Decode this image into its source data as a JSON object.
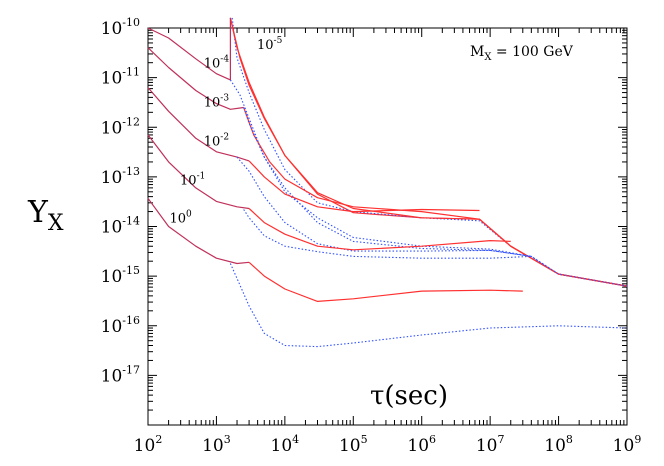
{
  "chart_data": {
    "type": "line",
    "xscale": "log",
    "yscale": "log",
    "xlim": [
      100,
      1000000000
    ],
    "ylim": [
      1e-18,
      1e-10
    ],
    "xlabel": "τ(sec)",
    "ylabel": {
      "main": "Y",
      "sub": "X"
    },
    "annotation": {
      "main": "M",
      "sub": "X",
      "rest": " = 100 GeV"
    },
    "x_ticks": [
      {
        "value": 100,
        "base": "10",
        "exp": "2"
      },
      {
        "value": 1000,
        "base": "10",
        "exp": "3"
      },
      {
        "value": 10000,
        "base": "10",
        "exp": "4"
      },
      {
        "value": 100000,
        "base": "10",
        "exp": "5"
      },
      {
        "value": 1000000,
        "base": "10",
        "exp": "6"
      },
      {
        "value": 10000000,
        "base": "10",
        "exp": "7"
      },
      {
        "value": 100000000,
        "base": "10",
        "exp": "8"
      },
      {
        "value": 1000000000,
        "base": "10",
        "exp": "9"
      }
    ],
    "y_ticks": [
      {
        "value": 1e-10,
        "base": "10",
        "exp": "-10"
      },
      {
        "value": 1e-11,
        "base": "10",
        "exp": "-11"
      },
      {
        "value": 1e-12,
        "base": "10",
        "exp": "-12"
      },
      {
        "value": 1e-13,
        "base": "10",
        "exp": "-13"
      },
      {
        "value": 1e-14,
        "base": "10",
        "exp": "-14"
      },
      {
        "value": 1e-15,
        "base": "10",
        "exp": "-15"
      },
      {
        "value": 1e-16,
        "base": "10",
        "exp": "-16"
      },
      {
        "value": 1e-17,
        "base": "10",
        "exp": "-17"
      }
    ],
    "curve_labels": [
      {
        "base": "10",
        "exp": "-5",
        "x": 6000,
        "y": 3.8e-11
      },
      {
        "base": "10",
        "exp": "-4",
        "x": 1000,
        "y": 1.6e-11
      },
      {
        "base": "10",
        "exp": "-3",
        "x": 1000,
        "y": 2.6e-12
      },
      {
        "base": "10",
        "exp": "-2",
        "x": 1000,
        "y": 4.3e-13
      },
      {
        "base": "10",
        "exp": "-1",
        "x": 450,
        "y": 7e-14
      },
      {
        "base": "10",
        "exp": "0",
        "x": 300,
        "y": 1.2e-14
      }
    ],
    "series": [
      {
        "name": "1e-5 solid",
        "color": "#ff3030",
        "style": "solid",
        "points": [
          [
            1600,
            1.6e-10
          ],
          [
            2000,
            4e-11
          ],
          [
            3000,
            8e-12
          ],
          [
            5000,
            1.6e-12
          ],
          [
            10000,
            2.7e-13
          ],
          [
            30000,
            4.5e-14
          ],
          [
            100000,
            1.9e-14
          ],
          [
            1000000,
            1.5e-14
          ],
          [
            7000000,
            1.4e-14
          ],
          [
            20000000,
            4e-15
          ],
          [
            100000000,
            1.1e-15
          ],
          [
            1000000000,
            6.3e-16
          ]
        ]
      },
      {
        "name": "1e-5 dotted",
        "color": "#3050ff",
        "style": "dotted",
        "points": [
          [
            1700,
            1.6e-10
          ],
          [
            2000,
            2.5e-11
          ],
          [
            3000,
            5e-12
          ],
          [
            5000,
            9e-13
          ],
          [
            10000,
            1.4e-13
          ],
          [
            30000,
            3e-14
          ],
          [
            100000,
            2e-14
          ],
          [
            1000000,
            1.5e-14
          ],
          [
            7000000,
            1.3e-14
          ],
          [
            20000000,
            4e-15
          ],
          [
            100000000,
            1.1e-15
          ],
          [
            1000000000,
            6.3e-16
          ]
        ]
      },
      {
        "name": "1e-4 solid",
        "color": "#ff3030",
        "style": "solid",
        "points": [
          [
            1600,
            1.6e-10
          ],
          [
            2200,
            2.5e-11
          ],
          [
            3000,
            7e-12
          ],
          [
            5000,
            1.5e-12
          ],
          [
            10000,
            2.7e-13
          ],
          [
            30000,
            4.8e-14
          ],
          [
            100000,
            2.3e-14
          ],
          [
            1000000,
            1.5e-14
          ],
          [
            7000000,
            1.4e-14
          ],
          [
            20000000,
            4e-15
          ],
          [
            100000000,
            1.1e-15
          ],
          [
            1000000000,
            6.3e-16
          ]
        ]
      },
      {
        "name": "1e-4 magenta",
        "color": "#c0305a",
        "style": "solid",
        "points": [
          [
            100,
            1e-10
          ],
          [
            200,
            6.3e-11
          ],
          [
            500,
            2.4e-11
          ],
          [
            1000,
            1.2e-11
          ],
          [
            1600,
            9e-12
          ],
          [
            1600,
            1.6e-10
          ]
        ]
      },
      {
        "name": "1e-4 dotted",
        "color": "#3050ff",
        "style": "dotted",
        "points": [
          [
            1600,
            9e-12
          ],
          [
            2200,
            4.5e-12
          ],
          [
            3000,
            1.5e-12
          ],
          [
            5000,
            2.5e-13
          ],
          [
            10000,
            5e-14
          ],
          [
            30000,
            1.5e-14
          ],
          [
            100000,
            6e-15
          ],
          [
            1000000,
            4e-15
          ],
          [
            10000000,
            3.5e-15
          ],
          [
            40000000,
            2.5e-15
          ],
          [
            100000000,
            1.1e-15
          ],
          [
            1000000000,
            6.3e-16
          ]
        ]
      },
      {
        "name": "1e-3 magenta",
        "color": "#c0305a",
        "style": "solid",
        "points": [
          [
            100,
            4e-11
          ],
          [
            200,
            1.6e-11
          ],
          [
            500,
            5.5e-12
          ],
          [
            1000,
            3e-12
          ],
          [
            1600,
            2.3e-12
          ],
          [
            2500,
            2.5e-12
          ]
        ]
      },
      {
        "name": "1e-3 red",
        "color": "#ff3030",
        "style": "solid",
        "points": [
          [
            2500,
            2.5e-12
          ],
          [
            3500,
            7e-13
          ],
          [
            6000,
            2e-13
          ],
          [
            10000,
            9e-14
          ],
          [
            30000,
            3.8e-14
          ],
          [
            100000,
            2.5e-14
          ],
          [
            1000000,
            2e-14
          ],
          [
            7000000,
            1.4e-14
          ],
          [
            20000000,
            4e-15
          ],
          [
            100000000,
            1.1e-15
          ],
          [
            1000000000,
            6.3e-16
          ]
        ]
      },
      {
        "name": "1e-3 dotted",
        "color": "#3050ff",
        "style": "dotted",
        "points": [
          [
            2500,
            2.5e-12
          ],
          [
            3000,
            1.2e-12
          ],
          [
            5000,
            2.5e-13
          ],
          [
            10000,
            6e-14
          ],
          [
            30000,
            1.2e-14
          ],
          [
            100000,
            5e-15
          ],
          [
            1000000,
            3.6e-15
          ],
          [
            10000000,
            3.3e-15
          ],
          [
            40000000,
            2.5e-15
          ],
          [
            100000000,
            1.1e-15
          ],
          [
            1000000000,
            6.3e-16
          ]
        ]
      },
      {
        "name": "1e-2 magenta",
        "color": "#c0305a",
        "style": "solid",
        "points": [
          [
            100,
            6.3e-12
          ],
          [
            200,
            2.1e-12
          ],
          [
            500,
            6e-13
          ],
          [
            1000,
            3.2e-13
          ],
          [
            2000,
            2.5e-13
          ],
          [
            3000,
            2.1e-13
          ]
        ]
      },
      {
        "name": "1e-2 red",
        "color": "#ff3030",
        "style": "solid",
        "points": [
          [
            3000,
            2.1e-13
          ],
          [
            5000,
            1e-13
          ],
          [
            10000,
            4.5e-14
          ],
          [
            30000,
            2.5e-14
          ],
          [
            100000,
            2e-14
          ],
          [
            1000000,
            2.2e-14
          ],
          [
            7000000,
            2.1e-14
          ]
        ]
      },
      {
        "name": "1e-2 dotted",
        "color": "#3050ff",
        "style": "dotted",
        "points": [
          [
            2000,
            2.5e-13
          ],
          [
            3000,
            1.3e-13
          ],
          [
            5000,
            4e-14
          ],
          [
            10000,
            1.2e-14
          ],
          [
            30000,
            4.5e-15
          ],
          [
            100000,
            3.2e-15
          ],
          [
            1000000,
            3.2e-15
          ],
          [
            10000000,
            3.3e-15
          ],
          [
            40000000,
            2.5e-15
          ]
        ]
      },
      {
        "name": "1e-1 magenta",
        "color": "#c0305a",
        "style": "solid",
        "points": [
          [
            100,
            7e-13
          ],
          [
            200,
            2e-13
          ],
          [
            500,
            6e-14
          ],
          [
            1000,
            3.2e-14
          ],
          [
            2000,
            2.5e-14
          ],
          [
            3000,
            2.3e-14
          ]
        ]
      },
      {
        "name": "1e-1 red",
        "color": "#ff3030",
        "style": "solid",
        "points": [
          [
            3000,
            2.3e-14
          ],
          [
            5000,
            1.2e-14
          ],
          [
            10000,
            7e-15
          ],
          [
            30000,
            4e-15
          ],
          [
            100000,
            3.4e-15
          ],
          [
            1000000,
            4e-15
          ],
          [
            10000000,
            5.2e-15
          ],
          [
            20000000,
            5e-15
          ]
        ]
      },
      {
        "name": "1e-1 dotted",
        "color": "#3050ff",
        "style": "dotted",
        "points": [
          [
            2500,
            2.2e-14
          ],
          [
            3000,
            1.5e-14
          ],
          [
            5000,
            6.5e-15
          ],
          [
            10000,
            4e-15
          ],
          [
            30000,
            3.1e-15
          ],
          [
            100000,
            2.5e-15
          ],
          [
            1000000,
            2.3e-15
          ],
          [
            10000000,
            2.3e-15
          ],
          [
            40000000,
            2.5e-15
          ]
        ]
      },
      {
        "name": "1e0 magenta",
        "color": "#c0305a",
        "style": "solid",
        "points": [
          [
            100,
            3.7e-14
          ],
          [
            200,
            1e-14
          ],
          [
            500,
            4e-15
          ],
          [
            1000,
            2.3e-15
          ],
          [
            2000,
            1.8e-15
          ],
          [
            3000,
            1.9e-15
          ]
        ]
      },
      {
        "name": "1e0 red",
        "color": "#ff3030",
        "style": "solid",
        "points": [
          [
            3000,
            1.9e-15
          ],
          [
            5000,
            1e-15
          ],
          [
            10000,
            5.5e-16
          ],
          [
            30000,
            3.1e-16
          ],
          [
            100000,
            3.5e-16
          ],
          [
            1000000,
            5e-16
          ],
          [
            10000000,
            5.2e-16
          ],
          [
            30000000,
            5e-16
          ]
        ]
      },
      {
        "name": "1e0 dotted",
        "color": "#3050ff",
        "style": "dotted",
        "points": [
          [
            1600,
            1.8e-15
          ],
          [
            2000,
            9e-16
          ],
          [
            3000,
            2.5e-16
          ],
          [
            5000,
            7e-17
          ],
          [
            10000,
            4e-17
          ],
          [
            30000,
            3.8e-17
          ],
          [
            100000,
            4.5e-17
          ],
          [
            1000000,
            6.5e-17
          ],
          [
            10000000,
            9e-17
          ],
          [
            100000000,
            1e-16
          ],
          [
            1000000000,
            9e-17
          ]
        ]
      }
    ]
  }
}
